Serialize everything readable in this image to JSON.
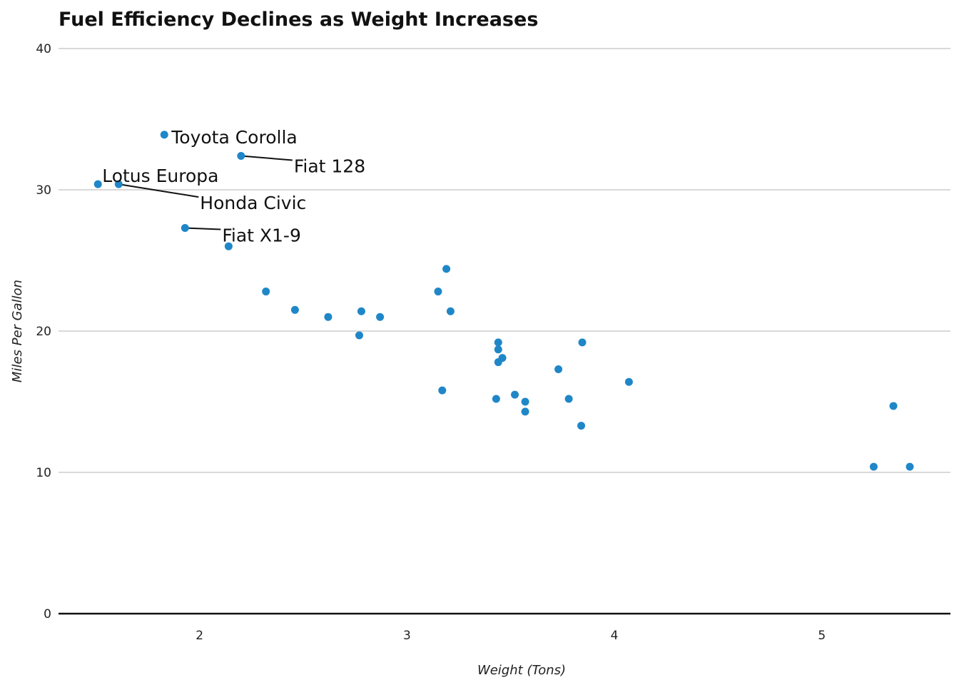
{
  "chart_data": {
    "type": "scatter",
    "title": "Fuel Efficiency Declines as Weight Increases",
    "xlabel": "Weight (Tons)",
    "ylabel": "Miles Per Gallon",
    "xlim": [
      1.32,
      5.62
    ],
    "ylim": [
      0,
      40
    ],
    "xticks": [
      2,
      3,
      4,
      5
    ],
    "yticks": [
      0,
      10,
      20,
      30,
      40
    ],
    "grid": "horizontal",
    "point_color": "#1f87c8",
    "points": [
      {
        "x": 1.51,
        "y": 30.4
      },
      {
        "x": 1.61,
        "y": 30.4
      },
      {
        "x": 1.83,
        "y": 33.9
      },
      {
        "x": 1.93,
        "y": 27.3
      },
      {
        "x": 2.14,
        "y": 26.0
      },
      {
        "x": 2.2,
        "y": 32.4
      },
      {
        "x": 2.32,
        "y": 22.8
      },
      {
        "x": 2.46,
        "y": 21.5
      },
      {
        "x": 2.62,
        "y": 21.0
      },
      {
        "x": 2.77,
        "y": 19.7
      },
      {
        "x": 2.78,
        "y": 21.4
      },
      {
        "x": 2.87,
        "y": 21.0
      },
      {
        "x": 3.15,
        "y": 22.8
      },
      {
        "x": 3.17,
        "y": 15.8
      },
      {
        "x": 3.19,
        "y": 24.4
      },
      {
        "x": 3.21,
        "y": 21.4
      },
      {
        "x": 3.43,
        "y": 15.2
      },
      {
        "x": 3.44,
        "y": 19.2
      },
      {
        "x": 3.44,
        "y": 18.7
      },
      {
        "x": 3.44,
        "y": 17.8
      },
      {
        "x": 3.46,
        "y": 18.1
      },
      {
        "x": 3.52,
        "y": 15.5
      },
      {
        "x": 3.57,
        "y": 15.0
      },
      {
        "x": 3.57,
        "y": 14.3
      },
      {
        "x": 3.73,
        "y": 17.3
      },
      {
        "x": 3.78,
        "y": 15.2
      },
      {
        "x": 3.84,
        "y": 13.3
      },
      {
        "x": 3.845,
        "y": 19.2
      },
      {
        "x": 4.07,
        "y": 16.4
      },
      {
        "x": 5.25,
        "y": 10.4
      },
      {
        "x": 5.345,
        "y": 14.7
      },
      {
        "x": 5.424,
        "y": 10.4
      }
    ],
    "annotations": [
      {
        "label": "Toyota Corolla",
        "x": 1.83,
        "y": 33.9,
        "leader": false
      },
      {
        "label": "Fiat 128",
        "x": 2.2,
        "y": 32.4,
        "leader": true
      },
      {
        "label": "Lotus Europa",
        "x": 1.51,
        "y": 30.4,
        "leader": false
      },
      {
        "label": "Honda Civic",
        "x": 1.61,
        "y": 30.4,
        "leader": true
      },
      {
        "label": "Fiat X1-9",
        "x": 1.93,
        "y": 27.3,
        "leader": true
      }
    ]
  }
}
